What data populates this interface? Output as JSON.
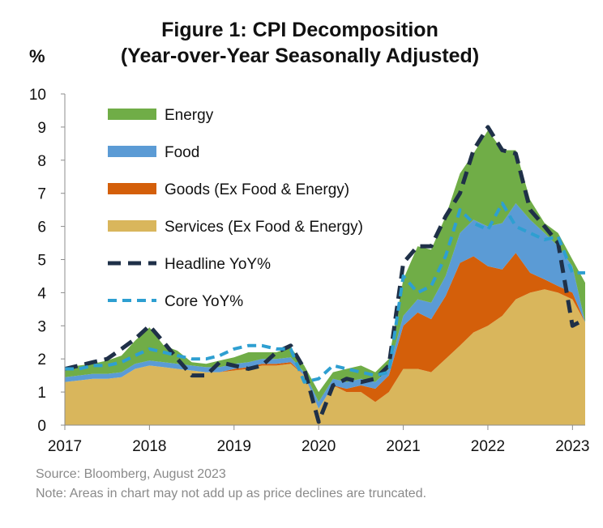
{
  "chart_data": {
    "type": "area",
    "title": "Figure 1: CPI Decomposition",
    "subtitle": "(Year-over-Year Seasonally Adjusted)",
    "ylabel": "%",
    "xlabel": "",
    "ylim": [
      0,
      10
    ],
    "xlim": [
      2017,
      2023.15
    ],
    "y_ticks": [
      "0",
      "1",
      "2",
      "3",
      "4",
      "5",
      "6",
      "7",
      "8",
      "9",
      "10"
    ],
    "x_ticks": [
      "2017",
      "2018",
      "2019",
      "2020",
      "2021",
      "2022",
      "2023"
    ],
    "legend_position": "top-left",
    "grid": false,
    "source": "Source: Bloomberg, August 2023",
    "note": "Note: Areas in chart may not add up as price declines are truncated.",
    "x": [
      2017.0,
      2017.17,
      2017.33,
      2017.5,
      2017.67,
      2017.83,
      2018.0,
      2018.17,
      2018.33,
      2018.5,
      2018.67,
      2018.83,
      2019.0,
      2019.17,
      2019.33,
      2019.5,
      2019.67,
      2019.83,
      2020.0,
      2020.17,
      2020.33,
      2020.5,
      2020.67,
      2020.83,
      2021.0,
      2021.17,
      2021.33,
      2021.5,
      2021.67,
      2021.83,
      2022.0,
      2022.17,
      2022.33,
      2022.5,
      2022.67,
      2022.83,
      2023.0,
      2023.15
    ],
    "series": [
      {
        "name": "Services (Ex Food & Energy)",
        "color": "#d9b65c",
        "values": [
          1.3,
          1.35,
          1.4,
          1.4,
          1.45,
          1.7,
          1.8,
          1.75,
          1.7,
          1.65,
          1.6,
          1.6,
          1.65,
          1.7,
          1.8,
          1.8,
          1.85,
          1.5,
          0.5,
          1.2,
          1.0,
          1.0,
          0.7,
          1.0,
          1.7,
          1.7,
          1.6,
          2.0,
          2.4,
          2.8,
          3.0,
          3.3,
          3.8,
          4.0,
          4.1,
          4.0,
          3.8,
          3.1
        ]
      },
      {
        "name": "Goods (Ex Food & Energy)",
        "color": "#d45f0a",
        "values": [
          0.0,
          0.0,
          0.0,
          0.0,
          0.0,
          0.0,
          0.0,
          0.0,
          0.0,
          0.0,
          0.0,
          0.0,
          0.05,
          0.05,
          0.05,
          0.05,
          0.05,
          0.0,
          0.0,
          0.0,
          0.1,
          0.2,
          0.4,
          0.5,
          1.3,
          1.7,
          1.6,
          1.9,
          2.5,
          2.3,
          1.8,
          1.4,
          1.4,
          0.6,
          0.3,
          0.2,
          0.2,
          0.0
        ]
      },
      {
        "name": "Food",
        "color": "#5b9bd5",
        "values": [
          0.15,
          0.15,
          0.15,
          0.15,
          0.15,
          0.15,
          0.15,
          0.15,
          0.15,
          0.15,
          0.15,
          0.15,
          0.15,
          0.15,
          0.15,
          0.15,
          0.15,
          0.1,
          0.2,
          0.2,
          0.2,
          0.2,
          0.2,
          0.2,
          0.3,
          0.4,
          0.5,
          0.6,
          0.9,
          1.1,
          1.2,
          1.4,
          1.5,
          1.6,
          1.4,
          1.2,
          0.8,
          0.0
        ]
      },
      {
        "name": "Energy",
        "color": "#70ad47",
        "values": [
          0.3,
          0.3,
          0.3,
          0.4,
          0.5,
          0.7,
          1.0,
          0.5,
          0.4,
          0.1,
          0.1,
          0.2,
          0.2,
          0.3,
          0.2,
          0.2,
          0.3,
          0.2,
          0.3,
          0.2,
          0.4,
          0.4,
          0.3,
          0.3,
          1.1,
          1.6,
          1.6,
          1.8,
          1.8,
          2.0,
          2.9,
          2.2,
          1.6,
          0.6,
          0.3,
          0.4,
          0.2,
          1.2
        ]
      },
      {
        "name": "Headline YoY%",
        "color": "#1f3048",
        "values": [
          1.7,
          1.8,
          1.9,
          2.0,
          2.3,
          2.6,
          3.0,
          2.5,
          2.0,
          1.5,
          1.5,
          1.9,
          1.8,
          1.7,
          1.8,
          2.2,
          2.4,
          1.7,
          0.1,
          1.2,
          1.4,
          1.3,
          1.4,
          1.8,
          4.9,
          5.4,
          5.4,
          6.3,
          7.0,
          8.3,
          9.0,
          8.3,
          8.2,
          6.5,
          6.0,
          5.5,
          3.0,
          3.2
        ]
      },
      {
        "name": "Core YoY%",
        "color": "#2e9fd1",
        "values": [
          1.7,
          1.7,
          1.8,
          1.8,
          1.9,
          2.1,
          2.3,
          2.2,
          2.1,
          2.0,
          2.0,
          2.1,
          2.3,
          2.4,
          2.4,
          2.3,
          2.3,
          1.3,
          1.4,
          1.8,
          1.7,
          1.6,
          1.5,
          1.6,
          4.5,
          4.0,
          4.2,
          5.1,
          6.5,
          6.1,
          5.9,
          6.7,
          6.0,
          5.8,
          5.6,
          5.7,
          4.6,
          4.6
        ]
      }
    ]
  }
}
